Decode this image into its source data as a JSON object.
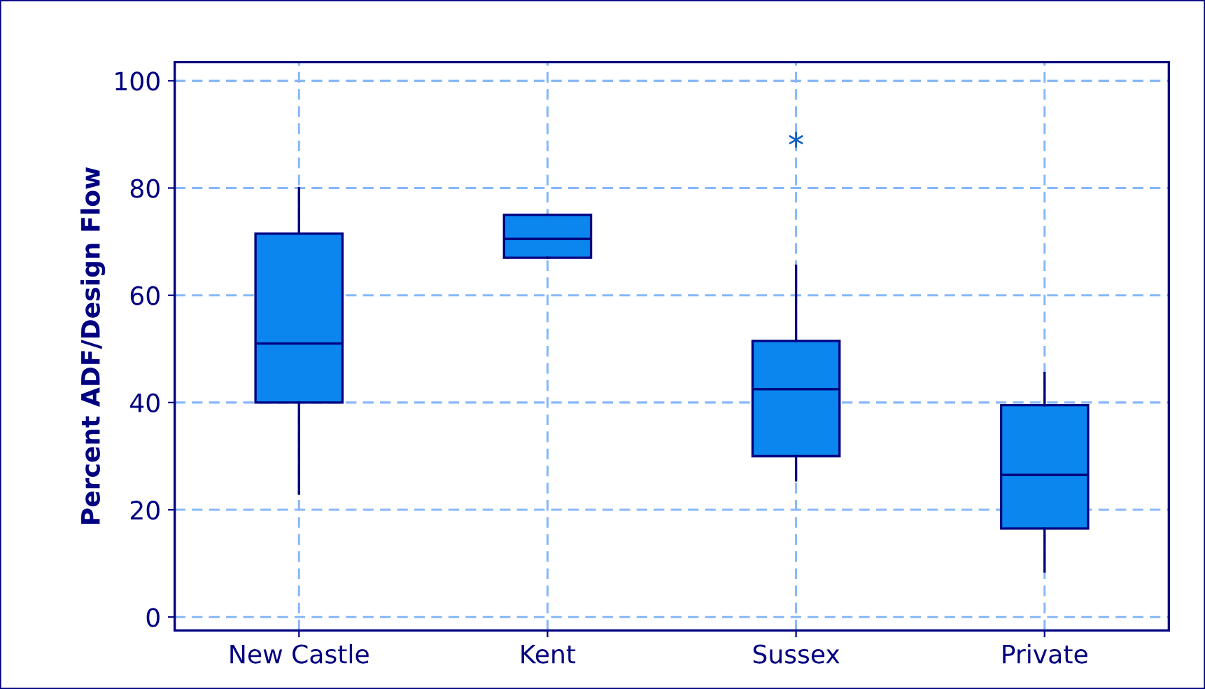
{
  "chart_data": {
    "type": "box",
    "ylabel": "Percent ADF/Design Flow",
    "categories": [
      "New Castle",
      "Kent",
      "Sussex",
      "Private"
    ],
    "boxes": [
      {
        "low": 23,
        "q1": 40,
        "median": 51,
        "q3": 71.5,
        "high": 80
      },
      {
        "low": 67,
        "q1": 67,
        "median": 70.5,
        "q3": 75,
        "high": 75
      },
      {
        "low": 25.5,
        "q1": 30,
        "median": 42.5,
        "q3": 51.5,
        "high": 65.5,
        "outliers": [
          89
        ]
      },
      {
        "low": 8.5,
        "q1": 16.5,
        "median": 26.5,
        "q3": 39.5,
        "high": 45.5
      }
    ],
    "color": "#0a86ee",
    "ylim": [
      -2.5,
      103.5
    ],
    "yticks": [
      0,
      20,
      40,
      60,
      80,
      100
    ],
    "grid": true,
    "line_style": "dashed"
  }
}
